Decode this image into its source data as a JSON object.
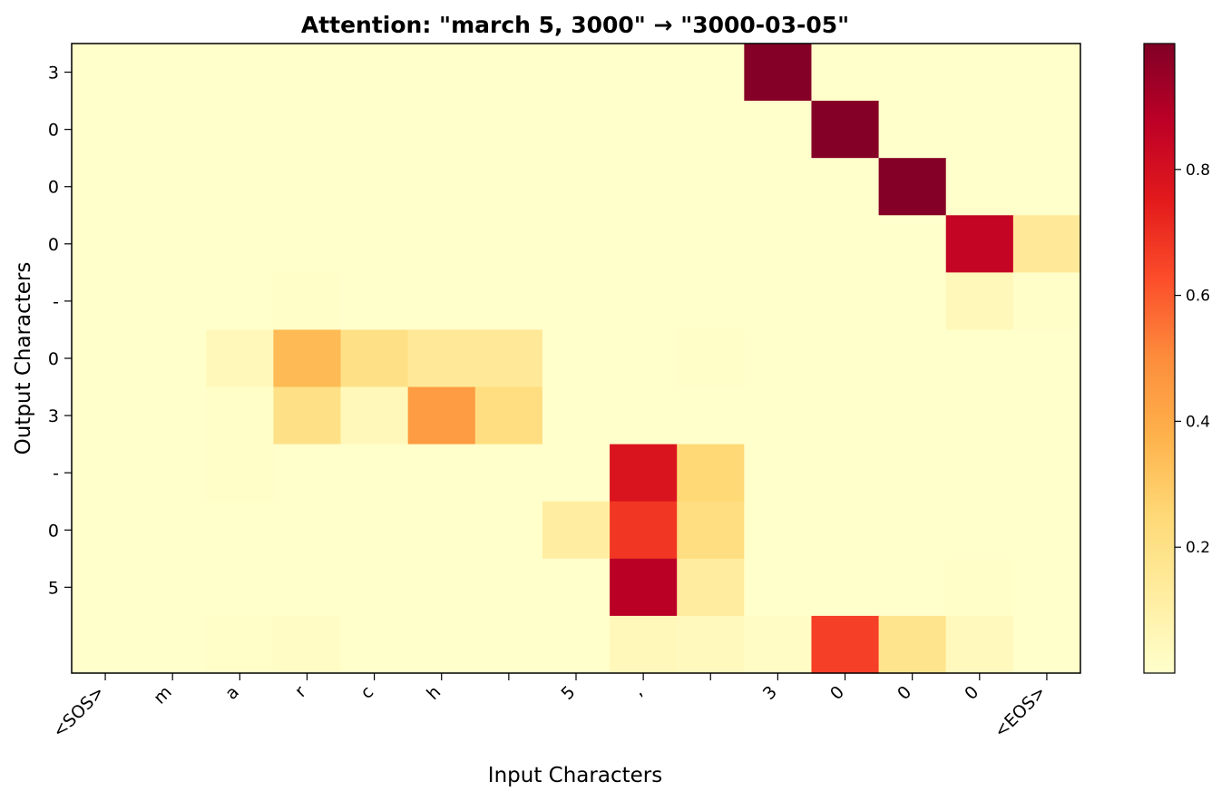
{
  "chart_data": {
    "type": "heatmap",
    "title": "Attention: \"march 5, 3000\" → \"3000-03-05\"",
    "xlabel": "Input Characters",
    "ylabel": "Output Characters",
    "x_tick_labels": [
      "<SOS>",
      "m",
      "a",
      "r",
      "c",
      "h",
      " ",
      "5",
      ",",
      " ",
      "3",
      "0",
      "0",
      "0",
      "<EOS>"
    ],
    "y_tick_labels": [
      "3",
      "0",
      "0",
      "0",
      "-",
      "0",
      "3",
      "-",
      "0",
      "5",
      ""
    ],
    "colormap": "YlOrRd",
    "colorbar": {
      "ticks": [
        0.2,
        0.4,
        0.6,
        0.8
      ],
      "range": [
        0.0,
        1.0
      ]
    },
    "values": [
      [
        0.0,
        0.0,
        0.0,
        0.0,
        0.0,
        0.0,
        0.0,
        0.0,
        0.0,
        0.0,
        0.99,
        0.0,
        0.0,
        0.0,
        0.0
      ],
      [
        0.0,
        0.0,
        0.0,
        0.0,
        0.0,
        0.0,
        0.0,
        0.0,
        0.0,
        0.0,
        0.0,
        0.99,
        0.0,
        0.0,
        0.0
      ],
      [
        0.0,
        0.0,
        0.0,
        0.0,
        0.0,
        0.0,
        0.0,
        0.0,
        0.0,
        0.0,
        0.0,
        0.0,
        0.99,
        0.0,
        0.0
      ],
      [
        0.0,
        0.0,
        0.0,
        0.0,
        0.0,
        0.0,
        0.0,
        0.0,
        0.0,
        0.0,
        0.0,
        0.0,
        0.0,
        0.85,
        0.15
      ],
      [
        0.0,
        0.0,
        0.0,
        0.01,
        0.0,
        0.0,
        0.0,
        0.0,
        0.0,
        0.0,
        0.0,
        0.0,
        0.0,
        0.05,
        0.01
      ],
      [
        0.0,
        0.0,
        0.05,
        0.35,
        0.2,
        0.15,
        0.15,
        0.0,
        0.0,
        0.01,
        0.0,
        0.0,
        0.0,
        0.0,
        0.0
      ],
      [
        0.0,
        0.0,
        0.01,
        0.2,
        0.05,
        0.45,
        0.22,
        0.0,
        0.0,
        0.0,
        0.0,
        0.0,
        0.0,
        0.0,
        0.0
      ],
      [
        0.0,
        0.0,
        0.01,
        0.0,
        0.0,
        0.0,
        0.0,
        0.0,
        0.78,
        0.25,
        0.0,
        0.0,
        0.0,
        0.0,
        0.0
      ],
      [
        0.0,
        0.0,
        0.0,
        0.0,
        0.0,
        0.0,
        0.0,
        0.12,
        0.68,
        0.22,
        0.0,
        0.0,
        0.0,
        0.0,
        0.0
      ],
      [
        0.0,
        0.0,
        0.0,
        0.0,
        0.0,
        0.0,
        0.0,
        0.0,
        0.88,
        0.13,
        0.0,
        0.0,
        0.0,
        0.01,
        0.0
      ],
      [
        0.0,
        0.0,
        0.01,
        0.02,
        0.0,
        0.0,
        0.0,
        0.0,
        0.05,
        0.04,
        0.02,
        0.66,
        0.18,
        0.04,
        0.0
      ]
    ]
  }
}
